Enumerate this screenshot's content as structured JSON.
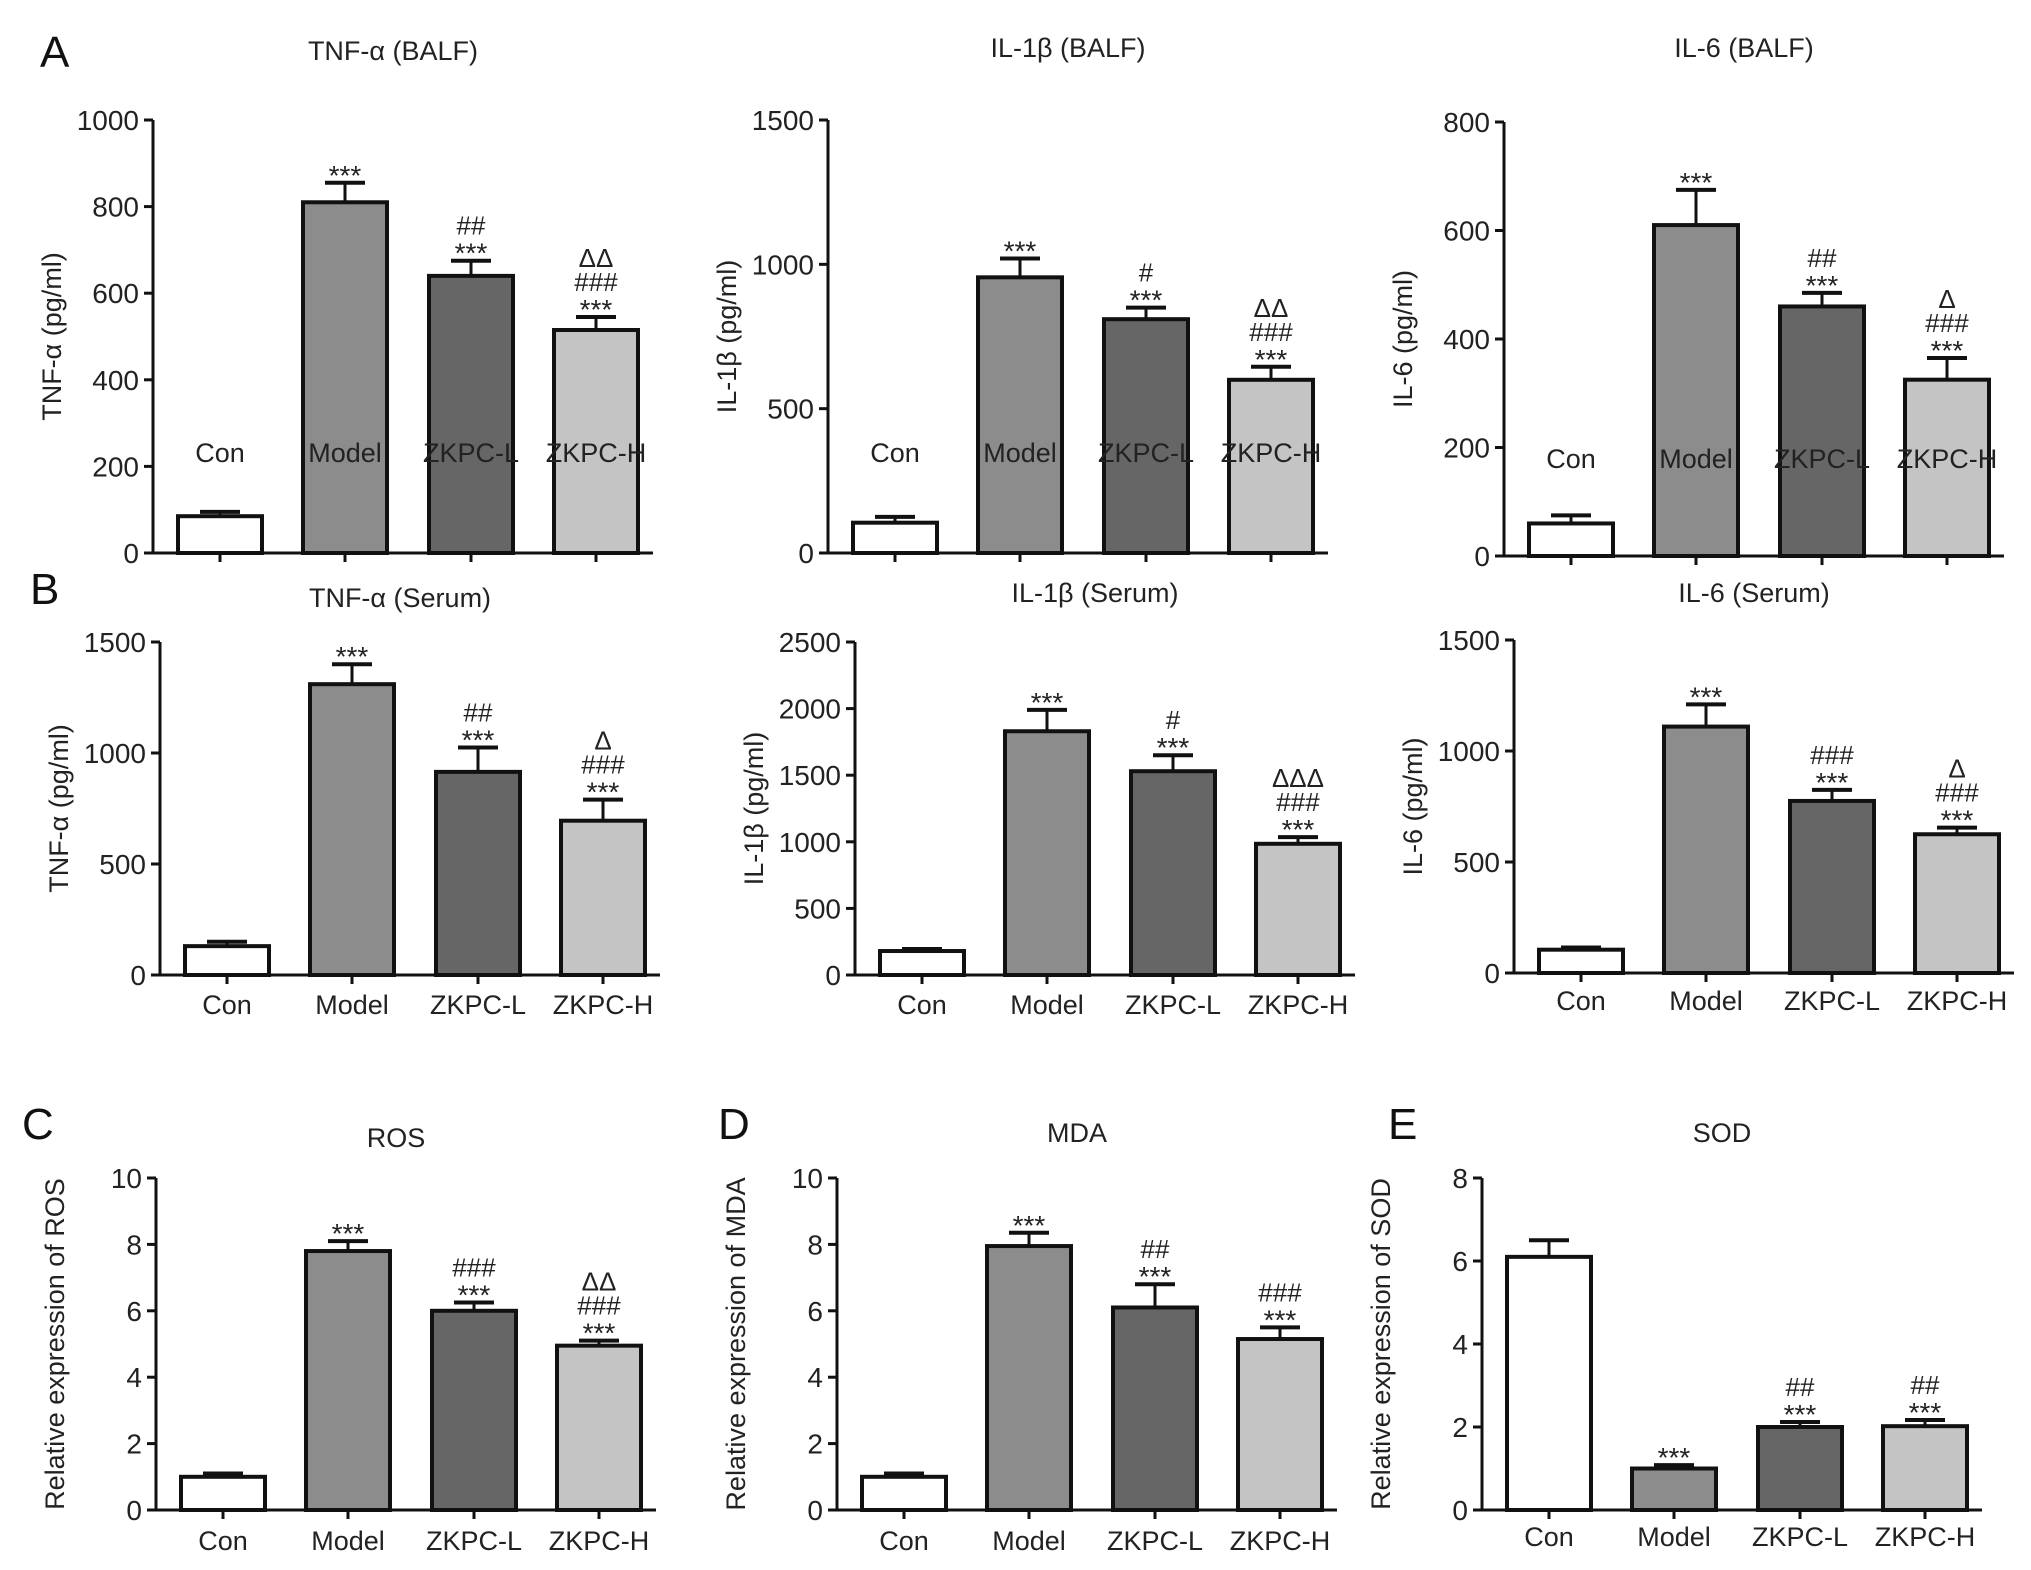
{
  "panel_labels": [
    "A",
    "B",
    "C",
    "D",
    "E"
  ],
  "colors": {
    "Con": "#ffffff",
    "Model": "#8c8c8c",
    "ZKPC-L": "#666666",
    "ZKPC-H": "#c4c4c4",
    "stroke": "#111111"
  },
  "chart_data": [
    {
      "type": "bar",
      "panel": "A",
      "title": "TNF-α (BALF)",
      "ylabel": "TNF-α (pg/ml)",
      "ylim": [
        0,
        1000
      ],
      "yticks": [
        0,
        200,
        400,
        600,
        800,
        1000
      ],
      "categories": [
        "Con",
        "Model",
        "ZKPC-L",
        "ZKPC-H"
      ],
      "values": [
        85,
        810,
        640,
        515
      ],
      "errors": [
        10,
        45,
        35,
        30
      ],
      "annotations": [
        [],
        [
          "***"
        ],
        [
          "##",
          "***"
        ],
        [
          "ΔΔ",
          "###",
          "***"
        ]
      ]
    },
    {
      "type": "bar",
      "panel": "A",
      "title": "IL-1β (BALF)",
      "ylabel": "IL-1β (pg/ml)",
      "ylim": [
        0,
        1500
      ],
      "yticks": [
        0,
        500,
        1000,
        1500
      ],
      "categories": [
        "Con",
        "Model",
        "ZKPC-L",
        "ZKPC-H"
      ],
      "values": [
        105,
        955,
        810,
        600
      ],
      "errors": [
        20,
        65,
        40,
        45
      ],
      "annotations": [
        [],
        [
          "***"
        ],
        [
          "#",
          "***"
        ],
        [
          "ΔΔ",
          "###",
          "***"
        ]
      ]
    },
    {
      "type": "bar",
      "panel": "A",
      "title": "IL-6 (BALF)",
      "ylabel": "IL-6 (pg/ml)",
      "ylim": [
        0,
        800
      ],
      "yticks": [
        0,
        200,
        400,
        600,
        800
      ],
      "categories": [
        "Con",
        "Model",
        "ZKPC-L",
        "ZKPC-H"
      ],
      "values": [
        60,
        610,
        460,
        325
      ],
      "errors": [
        15,
        65,
        25,
        40
      ],
      "annotations": [
        [],
        [
          "***"
        ],
        [
          "##",
          "***"
        ],
        [
          "Δ",
          "###",
          "***"
        ]
      ]
    },
    {
      "type": "bar",
      "panel": "B",
      "title": "TNF-α (Serum)",
      "ylabel": "TNF-α (pg/ml)",
      "ylim": [
        0,
        1500
      ],
      "yticks": [
        0,
        500,
        1000,
        1500
      ],
      "categories": [
        "Con",
        "Model",
        "ZKPC-L",
        "ZKPC-H"
      ],
      "values": [
        130,
        1310,
        915,
        695
      ],
      "errors": [
        20,
        90,
        110,
        95
      ],
      "annotations": [
        [],
        [
          "***"
        ],
        [
          "##",
          "***"
        ],
        [
          "Δ",
          "###",
          "***"
        ]
      ]
    },
    {
      "type": "bar",
      "panel": "B",
      "title": "IL-1β (Serum)",
      "ylabel": "IL-1β (pg/ml)",
      "ylim": [
        0,
        2500
      ],
      "yticks": [
        0,
        500,
        1000,
        1500,
        2000,
        2500
      ],
      "categories": [
        "Con",
        "Model",
        "ZKPC-L",
        "ZKPC-H"
      ],
      "values": [
        180,
        1830,
        1530,
        985
      ],
      "errors": [
        15,
        160,
        120,
        50
      ],
      "annotations": [
        [],
        [
          "***"
        ],
        [
          "#",
          "***"
        ],
        [
          "ΔΔΔ",
          "###",
          "***"
        ]
      ]
    },
    {
      "type": "bar",
      "panel": "B",
      "title": "IL-6 (Serum)",
      "ylabel": "IL-6 (pg/ml)",
      "ylim": [
        0,
        1500
      ],
      "yticks": [
        0,
        500,
        1000,
        1500
      ],
      "categories": [
        "Con",
        "Model",
        "ZKPC-L",
        "ZKPC-H"
      ],
      "values": [
        105,
        1110,
        775,
        625
      ],
      "errors": [
        10,
        100,
        50,
        30
      ],
      "annotations": [
        [],
        [
          "***"
        ],
        [
          "###",
          "***"
        ],
        [
          "Δ",
          "###",
          "***"
        ]
      ]
    },
    {
      "type": "bar",
      "panel": "C",
      "title": "ROS",
      "ylabel": "Relative expression of ROS",
      "ylim": [
        0,
        10
      ],
      "yticks": [
        0,
        2,
        4,
        6,
        8,
        10
      ],
      "categories": [
        "Con",
        "Model",
        "ZKPC-L",
        "ZKPC-H"
      ],
      "values": [
        1.0,
        7.8,
        6.0,
        4.95
      ],
      "errors": [
        0.1,
        0.3,
        0.25,
        0.15
      ],
      "annotations": [
        [],
        [
          "***"
        ],
        [
          "###",
          "***"
        ],
        [
          "ΔΔ",
          "###",
          "***"
        ]
      ]
    },
    {
      "type": "bar",
      "panel": "D",
      "title": "MDA",
      "ylabel": "Relative expression of MDA",
      "ylim": [
        0,
        10
      ],
      "yticks": [
        0,
        2,
        4,
        6,
        8,
        10
      ],
      "categories": [
        "Con",
        "Model",
        "ZKPC-L",
        "ZKPC-H"
      ],
      "values": [
        1.0,
        7.95,
        6.1,
        5.15
      ],
      "errors": [
        0.1,
        0.4,
        0.7,
        0.35
      ],
      "annotations": [
        [],
        [
          "***"
        ],
        [
          "##",
          "***"
        ],
        [
          "###",
          "***"
        ]
      ]
    },
    {
      "type": "bar",
      "panel": "E",
      "title": "SOD",
      "ylabel": "Relative expression of SOD",
      "ylim": [
        0,
        8
      ],
      "yticks": [
        0,
        2,
        4,
        6,
        8
      ],
      "categories": [
        "Con",
        "Model",
        "ZKPC-L",
        "ZKPC-H"
      ],
      "values": [
        6.1,
        1.0,
        2.0,
        2.02
      ],
      "errors": [
        0.4,
        0.08,
        0.12,
        0.15
      ],
      "annotations": [
        [],
        [
          "***"
        ],
        [
          "##",
          "***"
        ],
        [
          "##",
          "***"
        ]
      ]
    }
  ]
}
